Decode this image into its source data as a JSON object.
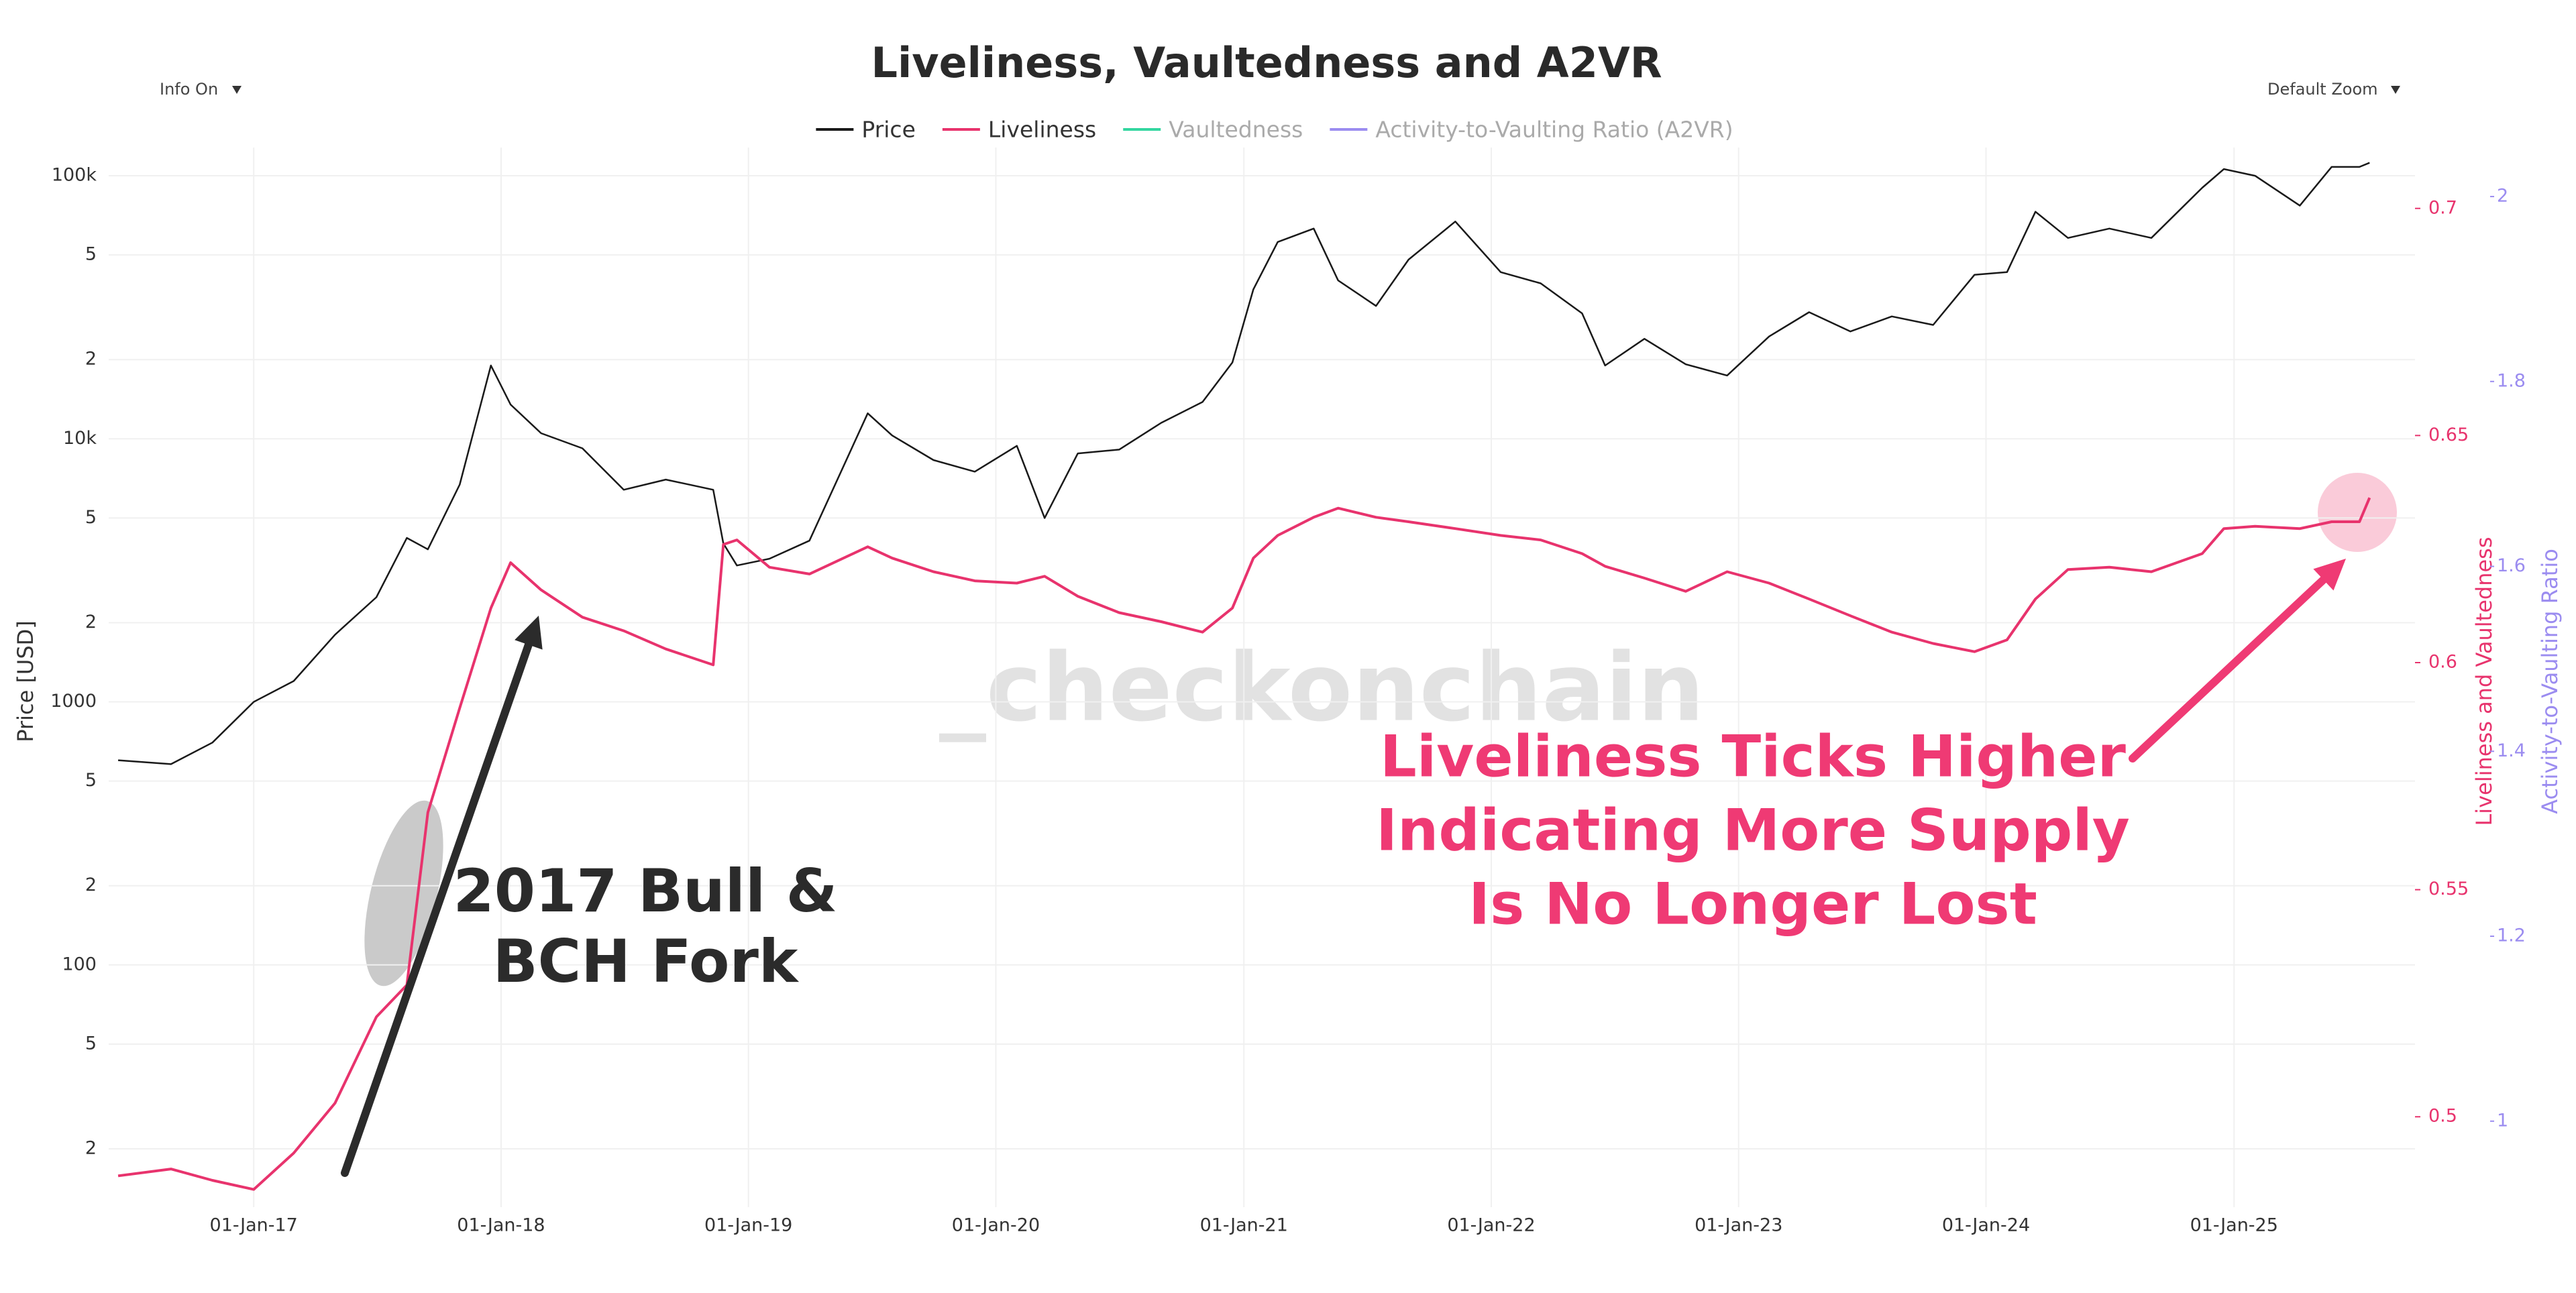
{
  "chart_data": {
    "type": "line",
    "title": "Liveliness, Vaultedness and A2VR",
    "buttons": [
      "Info On",
      "Default Zoom"
    ],
    "watermark": "_checkonchain",
    "x": [
      "2016-06-15",
      "2016-09-01",
      "2016-11-01",
      "2017-01-01",
      "2017-03-01",
      "2017-05-01",
      "2017-07-01",
      "2017-08-15",
      "2017-09-15",
      "2017-11-01",
      "2017-12-17",
      "2018-01-15",
      "2018-03-01",
      "2018-05-01",
      "2018-07-01",
      "2018-09-01",
      "2018-11-10",
      "2018-11-25",
      "2018-12-15",
      "2019-02-01",
      "2019-04-01",
      "2019-06-26",
      "2019-08-01",
      "2019-10-01",
      "2019-12-01",
      "2020-02-01",
      "2020-03-13",
      "2020-05-01",
      "2020-07-01",
      "2020-09-01",
      "2020-11-01",
      "2020-12-15",
      "2021-01-15",
      "2021-02-20",
      "2021-04-14",
      "2021-05-20",
      "2021-07-15",
      "2021-09-01",
      "2021-11-09",
      "2022-01-15",
      "2022-03-15",
      "2022-05-15",
      "2022-06-18",
      "2022-08-15",
      "2022-10-15",
      "2022-12-15",
      "2023-02-15",
      "2023-04-15",
      "2023-06-15",
      "2023-08-15",
      "2023-10-15",
      "2023-12-15",
      "2024-02-01",
      "2024-03-14",
      "2024-05-01",
      "2024-07-01",
      "2024-09-01",
      "2024-11-15",
      "2024-12-17",
      "2025-02-01",
      "2025-04-08",
      "2025-05-25",
      "2025-07-05",
      "2025-07-20"
    ],
    "series": [
      {
        "name": "Price",
        "color": "#1a1a1a",
        "axis": "y",
        "values": [
          600,
          580,
          700,
          1000,
          1200,
          1800,
          2500,
          4200,
          3800,
          6700,
          19000,
          13500,
          10500,
          9200,
          6400,
          7000,
          6400,
          4000,
          3300,
          3500,
          4100,
          12500,
          10300,
          8300,
          7500,
          9400,
          5000,
          8800,
          9100,
          11500,
          13800,
          19500,
          37000,
          56000,
          63000,
          40000,
          32000,
          48000,
          67000,
          43000,
          39000,
          30000,
          19000,
          24000,
          19200,
          17400,
          24500,
          30300,
          25600,
          29200,
          27100,
          42000,
          43000,
          73000,
          58000,
          63000,
          58000,
          90000,
          106000,
          100000,
          77000,
          108000,
          108000,
          112000
        ]
      },
      {
        "name": "Liveliness",
        "color": "#e8336d",
        "axis": "y2",
        "values": [
          0.487,
          0.4885,
          0.486,
          0.484,
          0.492,
          0.503,
          0.522,
          0.529,
          0.567,
          0.59,
          0.612,
          0.622,
          0.616,
          0.61,
          0.607,
          0.603,
          0.5995,
          0.626,
          0.627,
          0.621,
          0.6195,
          0.6255,
          0.623,
          0.62,
          0.618,
          0.6175,
          0.619,
          0.6146,
          0.611,
          0.609,
          0.6067,
          0.612,
          0.623,
          0.628,
          0.632,
          0.634,
          0.632,
          0.631,
          0.6295,
          0.628,
          0.627,
          0.624,
          0.6212,
          0.6186,
          0.6157,
          0.62,
          0.6175,
          0.614,
          0.6103,
          0.6067,
          0.6042,
          0.6024,
          0.605,
          0.614,
          0.6205,
          0.621,
          0.62,
          0.624,
          0.6295,
          0.63,
          0.6295,
          0.631,
          0.631,
          0.6363
        ]
      },
      {
        "name": "Vaultedness",
        "color": "#33d6a0",
        "axis": "y2",
        "visible": false
      },
      {
        "name": "Activity-to-Vaulting Ratio (A2VR)",
        "color": "#9b8cf0",
        "axis": "y3",
        "visible": false
      }
    ],
    "xlim": [
      "2016-06-01",
      "2025-09-25"
    ],
    "xticks": [
      {
        "value": "2017-01-01",
        "label": "01-Jan-17"
      },
      {
        "value": "2018-01-01",
        "label": "01-Jan-18"
      },
      {
        "value": "2019-01-01",
        "label": "01-Jan-19"
      },
      {
        "value": "2020-01-01",
        "label": "01-Jan-20"
      },
      {
        "value": "2021-01-01",
        "label": "01-Jan-21"
      },
      {
        "value": "2022-01-01",
        "label": "01-Jan-22"
      },
      {
        "value": "2023-01-01",
        "label": "01-Jan-23"
      },
      {
        "value": "2024-01-01",
        "label": "01-Jan-24"
      },
      {
        "value": "2025-01-01",
        "label": "01-Jan-25"
      }
    ],
    "ylabel": "Price [USD]",
    "ylog": true,
    "ylim": [
      12,
      128000
    ],
    "yticks": [
      {
        "value": 20,
        "label": "2"
      },
      {
        "value": 50,
        "label": "5"
      },
      100,
      {
        "value": 200,
        "label": "2"
      },
      {
        "value": 500,
        "label": "5"
      },
      1000,
      {
        "value": 2000,
        "label": "2"
      },
      {
        "value": 5000,
        "label": "5"
      },
      {
        "value": 10000,
        "label": "10k"
      },
      {
        "value": 20000,
        "label": "2"
      },
      {
        "value": 50000,
        "label": "5"
      },
      {
        "value": 100000,
        "label": "100k"
      }
    ],
    "y2label": "Liveliness and Vaultedness",
    "y2color": "#e8336d",
    "y2lim": [
      0.4801,
      0.7134
    ],
    "y2ticks": [
      0.5,
      0.55,
      0.6,
      0.65,
      0.7
    ],
    "y3label": "Activity-to-Vaulting Ratio",
    "y3color": "#9b8cf0",
    "y3lim": [
      0.907,
      2.053
    ],
    "y3ticks": [
      1,
      1.2,
      1.4,
      1.6,
      1.8,
      2
    ],
    "grid": true,
    "annotations": [
      {
        "lines": [
          "2017 Bull &",
          "BCH Fork"
        ],
        "color": "#2b2b2b"
      },
      {
        "lines": [
          "Liveliness Ticks Higher",
          "Indicating More Supply",
          "Is No Longer Lost"
        ],
        "color": "#ef3a74"
      }
    ]
  }
}
